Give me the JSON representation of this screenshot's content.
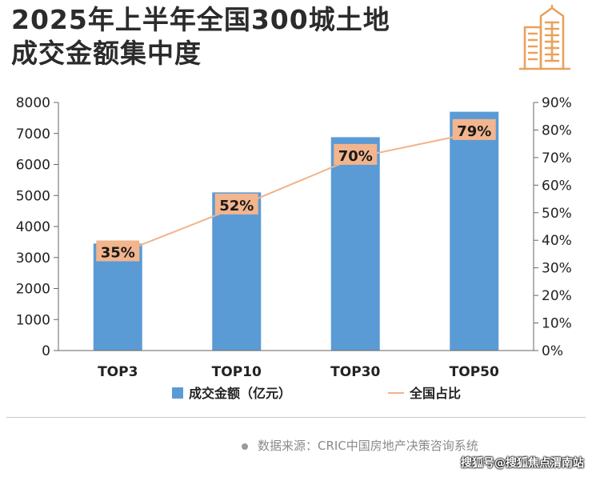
{
  "title_line1": "2025年上半年全国300城土地",
  "title_line2": "成交金额集中度",
  "source": "数据来源：CRIC中国房地产决策咨询系统",
  "watermark": "搜狐号@搜狐焦点渭南站",
  "colors": {
    "bar": "#5b9bd5",
    "line": "#f0b48a",
    "label_bg": "#f3b58d",
    "logo": "#e8a25c",
    "axis": "#666666"
  },
  "chart_data": {
    "type": "bar",
    "categories": [
      "TOP3",
      "TOP10",
      "TOP30",
      "TOP50"
    ],
    "series": [
      {
        "name": "成交金额（亿元）",
        "type": "bar",
        "axis": "left",
        "values": [
          3450,
          5100,
          6880,
          7700
        ]
      },
      {
        "name": "全国占比",
        "type": "line",
        "axis": "right",
        "values": [
          35,
          52,
          70,
          79
        ],
        "labels": [
          "35%",
          "52%",
          "70%",
          "79%"
        ]
      }
    ],
    "y_left": {
      "ylim": [
        0,
        8000
      ],
      "ticks": [
        "0",
        "1000",
        "2000",
        "3000",
        "4000",
        "5000",
        "6000",
        "7000",
        "8000"
      ]
    },
    "y_right": {
      "ylim": [
        0,
        90
      ],
      "ticks": [
        "0%",
        "10%",
        "20%",
        "30%",
        "40%",
        "50%",
        "60%",
        "70%",
        "80%",
        "90%"
      ]
    },
    "legend_position": "bottom",
    "grid": false
  }
}
